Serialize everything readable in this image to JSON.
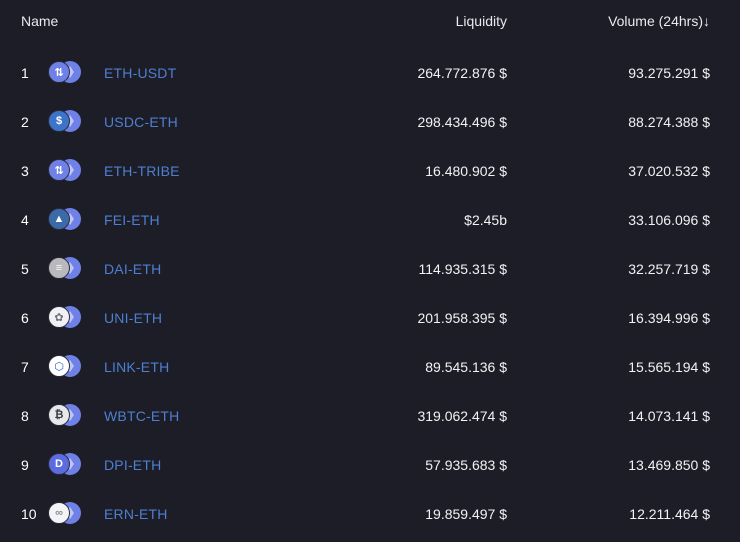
{
  "header": {
    "name": "Name",
    "liquidity": "Liquidity",
    "volume": "Volume (24hrs)",
    "sort_arrow": "↓"
  },
  "rows": [
    {
      "rank": "1",
      "pair": "ETH-USDT",
      "liquidity": "264.772.876 $",
      "volume": "93.275.291 $",
      "icon": "eth-usdt-icon",
      "front_color": "#6f81e6",
      "glyph": "⇅",
      "glyph_color": "#ffffff"
    },
    {
      "rank": "2",
      "pair": "USDC-ETH",
      "liquidity": "298.434.496 $",
      "volume": "88.274.388 $",
      "icon": "usdc-eth-icon",
      "front_color": "#3b74c9",
      "glyph": "$",
      "glyph_color": "#ffffff"
    },
    {
      "rank": "3",
      "pair": "ETH-TRIBE",
      "liquidity": "16.480.902 $",
      "volume": "37.020.532 $",
      "icon": "eth-tribe-icon",
      "front_color": "#6f81e6",
      "glyph": "⇅",
      "glyph_color": "#ffffff"
    },
    {
      "rank": "4",
      "pair": "FEI-ETH",
      "liquidity": "$2.45b",
      "volume": "33.106.096 $",
      "icon": "fei-eth-icon",
      "front_color": "#3c6aa8",
      "glyph": "▲",
      "glyph_color": "#ffffff"
    },
    {
      "rank": "5",
      "pair": "DAI-ETH",
      "liquidity": "114.935.315 $",
      "volume": "32.257.719 $",
      "icon": "dai-eth-icon",
      "front_color": "#b9b9bd",
      "glyph": "≡",
      "glyph_color": "#f5f5f5"
    },
    {
      "rank": "6",
      "pair": "UNI-ETH",
      "liquidity": "201.958.395 $",
      "volume": "16.394.996 $",
      "icon": "uni-eth-icon",
      "front_color": "#f1f1f3",
      "glyph": "✿",
      "glyph_color": "#6b6e7a"
    },
    {
      "rank": "7",
      "pair": "LINK-ETH",
      "liquidity": "89.545.136 $",
      "volume": "15.565.194 $",
      "icon": "link-eth-icon",
      "front_color": "#ffffff",
      "glyph": "⬡",
      "glyph_color": "#2f5fd0"
    },
    {
      "rank": "8",
      "pair": "WBTC-ETH",
      "liquidity": "319.062.474 $",
      "volume": "14.073.141 $",
      "icon": "wbtc-eth-icon",
      "front_color": "#e8e8ea",
      "glyph": "₿",
      "glyph_color": "#3a3b42"
    },
    {
      "rank": "9",
      "pair": "DPI-ETH",
      "liquidity": "57.935.683 $",
      "volume": "13.469.850 $",
      "icon": "dpi-eth-icon",
      "front_color": "#5b6be0",
      "glyph": "D",
      "glyph_color": "#ffffff"
    },
    {
      "rank": "10",
      "pair": "ERN-ETH",
      "liquidity": "19.859.497 $",
      "volume": "12.211.464 $",
      "icon": "ern-eth-icon",
      "front_color": "#f4f4f6",
      "glyph": "∞",
      "glyph_color": "#8a8c96"
    }
  ]
}
